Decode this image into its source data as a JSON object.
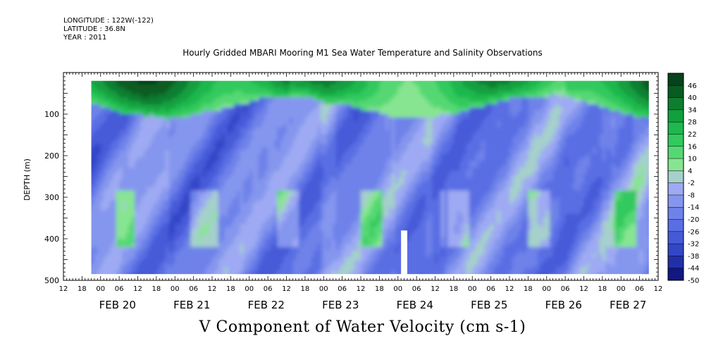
{
  "header": {
    "longitude": "LONGITUDE : 122W(-122)",
    "latitude": "LATITUDE : 36.8N",
    "year": "YEAR : 2011",
    "title": "Hourly Gridded MBARI Mooring M1 Sea Water Temperature and Salinity Observations"
  },
  "chart_data": {
    "type": "heatmap",
    "title": "Hourly Gridded MBARI Mooring M1 Sea Water Temperature and Salinity Observations",
    "xlabel": "",
    "ylabel": "DEPTH (m)",
    "variable_label": "V Component of Water Velocity (cm s-1)",
    "x_hour_ticks": [
      "12",
      "18",
      "00",
      "06",
      "12",
      "18",
      "00",
      "06",
      "12",
      "18",
      "00",
      "06",
      "12",
      "18",
      "00",
      "06",
      "12",
      "18",
      "00",
      "06",
      "12",
      "18",
      "00",
      "06",
      "12",
      "18",
      "00",
      "06",
      "12",
      "18",
      "00",
      "06",
      "12"
    ],
    "x_day_labels": [
      "FEB 20",
      "FEB 21",
      "FEB 22",
      "FEB 23",
      "FEB 24",
      "FEB 25",
      "FEB 26",
      "FEB 27"
    ],
    "x_range_hours_from_feb20_00": [
      -12,
      180
    ],
    "data_start_hour": -3,
    "data_end_hour": 177,
    "y_ticks": [
      100,
      200,
      300,
      400,
      500
    ],
    "y_tick_labels": [
      "100",
      "200",
      "300",
      "400",
      "500"
    ],
    "y_range": [
      0,
      500
    ],
    "y_inverted": true,
    "data_depth_range": [
      20,
      485
    ],
    "colorbar_levels": [
      48,
      46,
      40,
      34,
      28,
      22,
      16,
      10,
      4,
      -2,
      -8,
      -14,
      -20,
      -26,
      -32,
      -38,
      -44,
      -50
    ],
    "colorbar_labels": [
      "46",
      "40",
      "34",
      "28",
      "22",
      "16",
      "10",
      "4",
      "-2",
      "-8",
      "-14",
      "-20",
      "-26",
      "-32",
      "-38",
      "-44",
      "-50"
    ],
    "colors": {
      "strong_positive": "#0a5a20",
      "positive": "#2ec850",
      "weak_positive": "#8ee88e",
      "weak_negative": "#a8b4f0",
      "negative": "#6a80e0",
      "strong_negative": "#1a2a9a"
    },
    "pattern": {
      "surface_layer": "strong northward (positive) flow 20-90 m, up to ~40 cm/s",
      "subsurface": "mostly weak southward (negative) flow -8 to -26 cm/s with positive streaks near 300-400 m",
      "missing_data_gaps": [
        {
          "hour_start": 97,
          "hour_end": 99,
          "depth_start": 380
        }
      ]
    }
  }
}
